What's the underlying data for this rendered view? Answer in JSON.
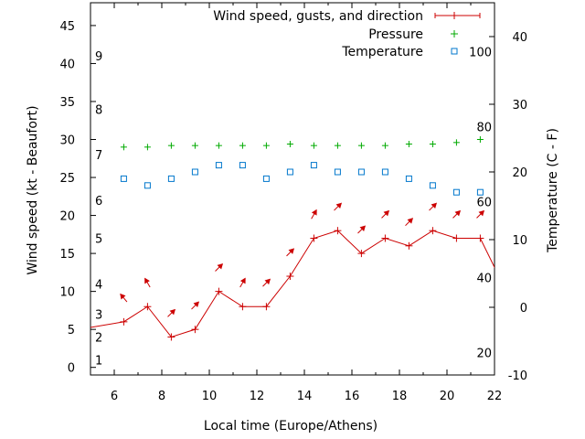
{
  "chart_data": {
    "type": "line",
    "xlabel": "Local time (Europe/Athens)",
    "ylabel": "Wind speed (kt - Beaufort)",
    "y2label": "Temperature (C - F)",
    "xlim": [
      5,
      22
    ],
    "ylim": [
      -1,
      48
    ],
    "y2lim": [
      -10,
      45
    ],
    "x_ticks": [
      6,
      8,
      10,
      12,
      14,
      16,
      18,
      20,
      22
    ],
    "y_ticks": [
      0,
      5,
      10,
      15,
      20,
      25,
      30,
      35,
      40,
      45
    ],
    "y2_ticks": [
      -10,
      0,
      10,
      20,
      30,
      40
    ],
    "beaufort_labels": [
      {
        "label": "1",
        "kt": 1
      },
      {
        "label": "2",
        "kt": 4
      },
      {
        "label": "3",
        "kt": 7
      },
      {
        "label": "4",
        "kt": 11
      },
      {
        "label": "5",
        "kt": 17
      },
      {
        "label": "6",
        "kt": 22
      },
      {
        "label": "7",
        "kt": 28
      },
      {
        "label": "8",
        "kt": 34
      },
      {
        "label": "9",
        "kt": 41
      }
    ],
    "fahrenheit_labels": [
      {
        "label": "20",
        "c": -6.7
      },
      {
        "label": "40",
        "c": 4.4
      },
      {
        "label": "60",
        "c": 15.6
      },
      {
        "label": "80",
        "c": 26.7
      },
      {
        "label": "100",
        "c": 37.8
      }
    ],
    "legend": [
      {
        "name": "Wind speed, gusts, and direction",
        "color": "#cc0000"
      },
      {
        "name": "Pressure",
        "color": "#00aa00"
      },
      {
        "name": "Temperature",
        "color": "#0077cc"
      }
    ],
    "series": [
      {
        "name": "Wind speed, gusts, and direction",
        "color": "#cc0000",
        "x": [
          4.5,
          6.4,
          7.4,
          8.4,
          9.4,
          10.4,
          11.4,
          12.4,
          13.4,
          14.4,
          15.4,
          16.4,
          17.4,
          18.4,
          19.4,
          20.4,
          21.4,
          22.5
        ],
        "y": [
          5,
          6,
          8,
          4,
          5,
          10,
          8,
          8,
          12,
          17,
          18,
          15,
          17,
          16,
          18,
          17,
          17,
          10
        ],
        "direction_deg": [
          135,
          130,
          120,
          45,
          45,
          45,
          60,
          45,
          45,
          60,
          45,
          45,
          45,
          45,
          45,
          45,
          45,
          45
        ]
      },
      {
        "name": "Pressure",
        "color": "#00aa00",
        "x": [
          6.4,
          7.4,
          8.4,
          9.4,
          10.4,
          11.4,
          12.4,
          13.4,
          14.4,
          15.4,
          16.4,
          17.4,
          18.4,
          19.4,
          20.4,
          21.4
        ],
        "y": [
          29,
          29,
          29.2,
          29.2,
          29.2,
          29.2,
          29.2,
          29.4,
          29.2,
          29.2,
          29.2,
          29.2,
          29.4,
          29.4,
          29.6,
          30
        ]
      },
      {
        "name": "Temperature",
        "color": "#0077cc",
        "x": [
          6.4,
          7.4,
          8.4,
          9.4,
          10.4,
          11.4,
          12.4,
          13.4,
          14.4,
          15.4,
          16.4,
          17.4,
          18.4,
          19.4,
          20.4,
          21.4
        ],
        "y": [
          19,
          18,
          19,
          20,
          21,
          21,
          19,
          20,
          21,
          20,
          20,
          20,
          19,
          18,
          17,
          17
        ]
      }
    ]
  }
}
